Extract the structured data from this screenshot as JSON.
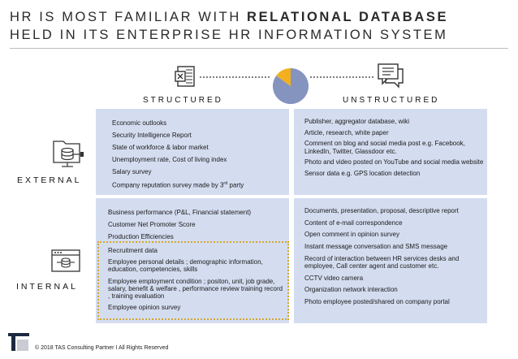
{
  "title": {
    "line1_plain": "HR IS MOST FAMILIAR WITH ",
    "line1_bold": "RELATIONAL DATABASE",
    "line2": "HELD IN ITS ENTERPRISE HR INFORMATION SYSTEM"
  },
  "columns": {
    "structured": "STRUCTURED",
    "unstructured": "UNSTRUCTURED"
  },
  "rows": {
    "external": "EXTERNAL",
    "internal": "INTERNAL"
  },
  "pie": {
    "unstructured_share_percent": 85,
    "structured_share_percent": 15,
    "colors": {
      "major": "#8593bf",
      "minor": "#f2b01e"
    }
  },
  "external_structured": [
    "Economic outlooks",
    "Security Intelligence Report",
    "State of workforce & labor market",
    "Unemployment rate, Cost of living index",
    "Salary survey",
    "Company reputation survey made by 3rd party"
  ],
  "external_unstructured": [
    "Publisher, aggregator database, wiki",
    "Article, research, white paper",
    "Comment on blog and social media post e.g. Facebook, LinkedIn, Twitter, Glassdoor etc.",
    "Photo and video posted on YouTube and social media website",
    "Sensor data e.g. GPS location detection"
  ],
  "internal_structured_top": [
    "Business performance (P&L, Financial statement)",
    "Customer Net Promoter Score",
    "Production Efficiencies"
  ],
  "internal_structured_highlight": [
    "Recruitment data",
    "Employee personal details ; demographic information, education, competencies, skills",
    "Employee employment condition ; positon, unit, job grade, salary, benefit & welfare , performance review training record , training evaluation",
    "Employee opinion survey"
  ],
  "internal_unstructured": [
    "Documents, presentation, proposal, descriptive report",
    "Content of e-mail correspondence",
    "Open comment in opinion survey",
    "Instant message conversation and SMS message",
    "Record of interaction between HR services desks and employee, Call center agent and customer etc.",
    "CCTV video camera",
    "Organization network interaction",
    "Photo employee posted/shared on company portal"
  ],
  "footer": "© 2018 TAS Consulting Partner  I  All Rights Reserved"
}
